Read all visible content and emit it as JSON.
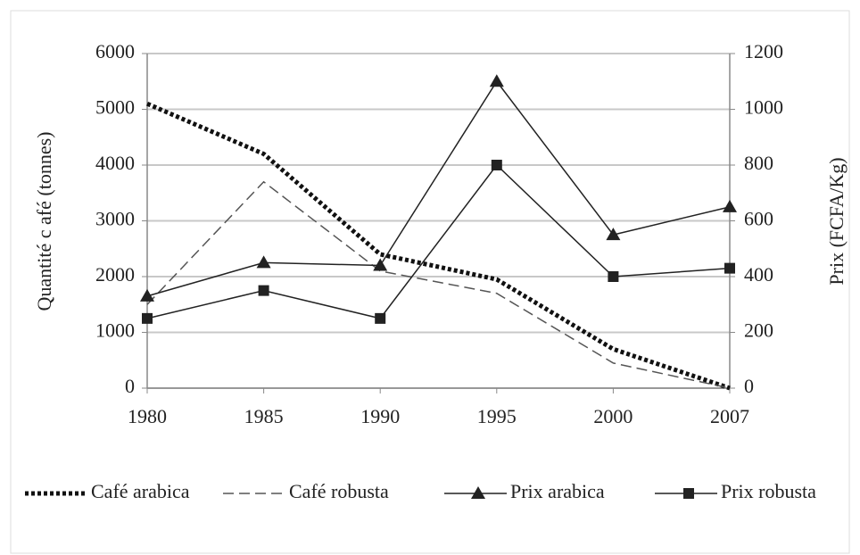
{
  "chart_data": {
    "type": "line",
    "categories": [
      "1980",
      "1985",
      "1990",
      "1995",
      "2000",
      "2007"
    ],
    "ylabel": "Quantité c afé (tonnes)",
    "y2label": "Prix (FCFA/Kg)",
    "ylim": [
      0,
      6000
    ],
    "yticks": [
      0,
      1000,
      2000,
      3000,
      4000,
      5000,
      6000
    ],
    "y2lim": [
      0,
      1200
    ],
    "y2ticks": [
      0,
      200,
      400,
      600,
      800,
      1000,
      1200
    ],
    "grid": true,
    "legend": "bottom",
    "series": [
      {
        "name": "Café arabica",
        "color": "#111111",
        "line_style": "dotted",
        "marker": "none",
        "values": [
          5100,
          4200,
          2400,
          1950,
          700,
          0
        ]
      },
      {
        "name": "Café robusta",
        "color": "#555555",
        "line_style": "dashed",
        "marker": "none",
        "values": [
          1500,
          3700,
          2100,
          1700,
          450,
          0
        ]
      },
      {
        "name": "Prix arabica",
        "color": "#222222",
        "line_style": "solid",
        "marker": "triangle",
        "axis": "y2",
        "values": [
          330,
          450,
          440,
          1100,
          550,
          650
        ]
      },
      {
        "name": "Prix robusta",
        "color": "#222222",
        "line_style": "solid",
        "marker": "square",
        "axis": "y2",
        "values": [
          250,
          350,
          250,
          800,
          400,
          430
        ]
      }
    ]
  }
}
